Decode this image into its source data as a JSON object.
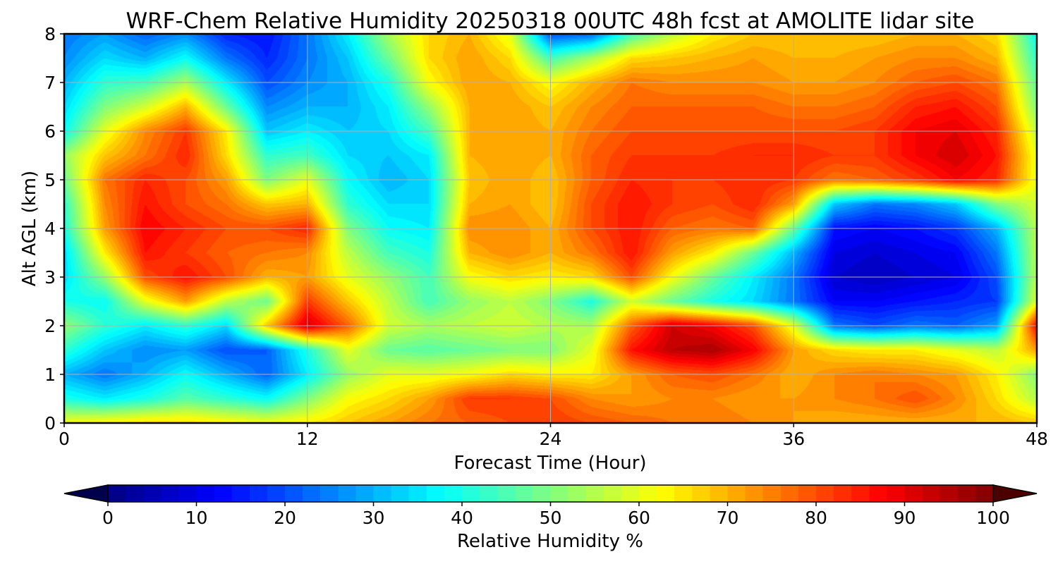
{
  "chart_data": {
    "type": "heatmap",
    "title": "WRF-Chem Relative Humidity 20250318 00UTC 48h fcst at AMOLITE lidar site",
    "xlabel": "Forecast Time (Hour)",
    "ylabel": "Alt AGL (km)",
    "xlim": [
      0,
      48
    ],
    "ylim": [
      0,
      8
    ],
    "x_ticks": [
      "0",
      "12",
      "24",
      "36",
      "48"
    ],
    "y_ticks": [
      "0",
      "1",
      "2",
      "3",
      "4",
      "5",
      "6",
      "7",
      "8"
    ],
    "grid": true,
    "colormap": "jet",
    "colorbar": {
      "label": "Relative Humidity %",
      "range": [
        0,
        100
      ],
      "ticks": [
        "0",
        "10",
        "20",
        "30",
        "40",
        "50",
        "60",
        "70",
        "80",
        "90",
        "100"
      ],
      "extend": "both",
      "orientation": "horizontal"
    },
    "x": [
      0,
      2,
      4,
      6,
      8,
      10,
      12,
      14,
      16,
      18,
      20,
      22,
      24,
      26,
      28,
      30,
      32,
      34,
      36,
      38,
      40,
      42,
      44,
      46,
      48
    ],
    "y": [
      0,
      0.5,
      1,
      1.5,
      2,
      2.5,
      3,
      3.5,
      4,
      4.5,
      5,
      5.5,
      6,
      6.5,
      7,
      7.5,
      8
    ],
    "z": [
      [
        62,
        64,
        66,
        66,
        64,
        62,
        64,
        68,
        72,
        76,
        78,
        80,
        82,
        80,
        78,
        76,
        76,
        74,
        72,
        70,
        70,
        70,
        70,
        70,
        68
      ],
      [
        40,
        36,
        40,
        46,
        42,
        38,
        50,
        62,
        66,
        72,
        82,
        82,
        80,
        74,
        72,
        74,
        74,
        72,
        72,
        74,
        76,
        80,
        74,
        66,
        55
      ],
      [
        30,
        24,
        30,
        38,
        30,
        22,
        36,
        52,
        60,
        60,
        62,
        66,
        64,
        64,
        72,
        78,
        80,
        76,
        70,
        74,
        76,
        74,
        72,
        64,
        50
      ],
      [
        42,
        32,
        26,
        28,
        20,
        22,
        40,
        60,
        48,
        46,
        48,
        50,
        50,
        60,
        86,
        94,
        96,
        88,
        72,
        66,
        64,
        64,
        60,
        56,
        72
      ],
      [
        52,
        42,
        36,
        42,
        34,
        68,
        92,
        78,
        58,
        54,
        56,
        58,
        55,
        54,
        78,
        92,
        88,
        80,
        60,
        24,
        20,
        24,
        22,
        28,
        88
      ],
      [
        40,
        38,
        60,
        72,
        56,
        48,
        82,
        68,
        56,
        44,
        52,
        56,
        50,
        40,
        58,
        48,
        40,
        34,
        24,
        12,
        12,
        14,
        16,
        18,
        60
      ],
      [
        34,
        52,
        80,
        86,
        80,
        70,
        72,
        60,
        52,
        44,
        62,
        66,
        64,
        66,
        80,
        62,
        48,
        36,
        24,
        8,
        6,
        8,
        10,
        20,
        56
      ],
      [
        34,
        64,
        86,
        82,
        78,
        76,
        74,
        56,
        44,
        40,
        70,
        74,
        70,
        76,
        86,
        72,
        64,
        48,
        30,
        10,
        8,
        10,
        12,
        24,
        56
      ],
      [
        40,
        72,
        88,
        84,
        80,
        80,
        84,
        50,
        38,
        36,
        74,
        74,
        70,
        80,
        86,
        78,
        76,
        78,
        48,
        14,
        12,
        14,
        18,
        30,
        56
      ],
      [
        42,
        74,
        86,
        80,
        76,
        68,
        70,
        42,
        34,
        34,
        70,
        72,
        68,
        80,
        86,
        82,
        80,
        84,
        72,
        32,
        24,
        26,
        32,
        50,
        58
      ],
      [
        48,
        76,
        84,
        80,
        72,
        50,
        60,
        38,
        30,
        34,
        68,
        72,
        68,
        78,
        84,
        82,
        82,
        84,
        82,
        76,
        78,
        82,
        88,
        84,
        60
      ],
      [
        52,
        68,
        76,
        84,
        66,
        42,
        44,
        34,
        32,
        36,
        70,
        72,
        70,
        78,
        82,
        82,
        82,
        84,
        84,
        82,
        82,
        88,
        92,
        86,
        60
      ],
      [
        38,
        60,
        74,
        82,
        64,
        32,
        36,
        32,
        34,
        44,
        70,
        72,
        70,
        76,
        80,
        80,
        80,
        80,
        80,
        80,
        82,
        88,
        90,
        84,
        56
      ],
      [
        34,
        50,
        58,
        70,
        48,
        26,
        30,
        30,
        36,
        52,
        70,
        72,
        68,
        74,
        78,
        78,
        78,
        78,
        76,
        76,
        78,
        84,
        86,
        80,
        50
      ],
      [
        30,
        42,
        44,
        54,
        36,
        20,
        26,
        30,
        40,
        62,
        72,
        70,
        62,
        70,
        76,
        74,
        74,
        74,
        72,
        72,
        74,
        78,
        80,
        76,
        46
      ],
      [
        26,
        34,
        30,
        38,
        24,
        16,
        24,
        32,
        48,
        66,
        72,
        66,
        44,
        54,
        66,
        68,
        70,
        72,
        70,
        70,
        72,
        74,
        74,
        70,
        42
      ],
      [
        24,
        28,
        22,
        26,
        16,
        14,
        24,
        36,
        54,
        66,
        70,
        60,
        20,
        22,
        44,
        56,
        64,
        68,
        68,
        68,
        68,
        70,
        70,
        66,
        38
      ]
    ]
  }
}
